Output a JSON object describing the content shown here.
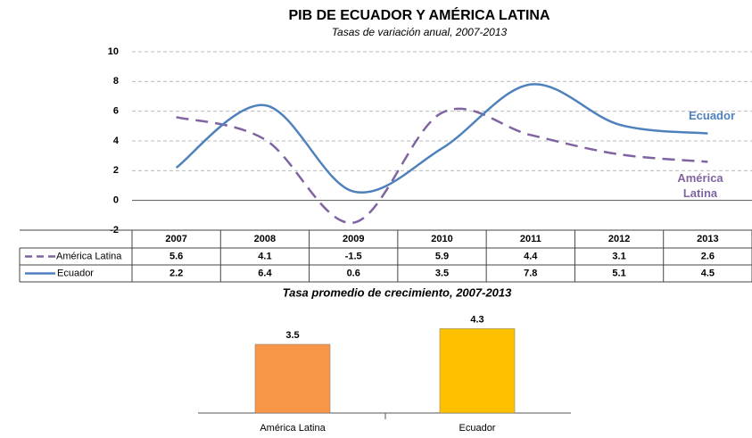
{
  "chart_data": [
    {
      "type": "line",
      "title": "PIB DE ECUADOR Y AMÉRICA LATINA",
      "subtitle": "Tasas de variación anual, 2007-2013",
      "categories": [
        "2007",
        "2008",
        "2009",
        "2010",
        "2011",
        "2012",
        "2013"
      ],
      "series": [
        {
          "name": "América Latina",
          "color": "#8064a2",
          "dashed": true,
          "values": [
            5.6,
            4.1,
            -1.5,
            5.9,
            4.4,
            3.1,
            2.6
          ]
        },
        {
          "name": "Ecuador",
          "color": "#4f81bd",
          "dashed": false,
          "values": [
            2.2,
            6.4,
            0.6,
            3.5,
            7.8,
            5.1,
            4.5
          ]
        }
      ],
      "ylim": [
        -2,
        10
      ],
      "yticks": [
        -2,
        0,
        2,
        4,
        6,
        8,
        10
      ],
      "grid": true
    },
    {
      "type": "bar",
      "title": "Tasa promedio de crecimiento, 2007-2013",
      "categories": [
        "América Latina",
        "Ecuador"
      ],
      "values": [
        3.5,
        4.3
      ],
      "colors": [
        "#f79646",
        "#ffc000"
      ]
    }
  ]
}
